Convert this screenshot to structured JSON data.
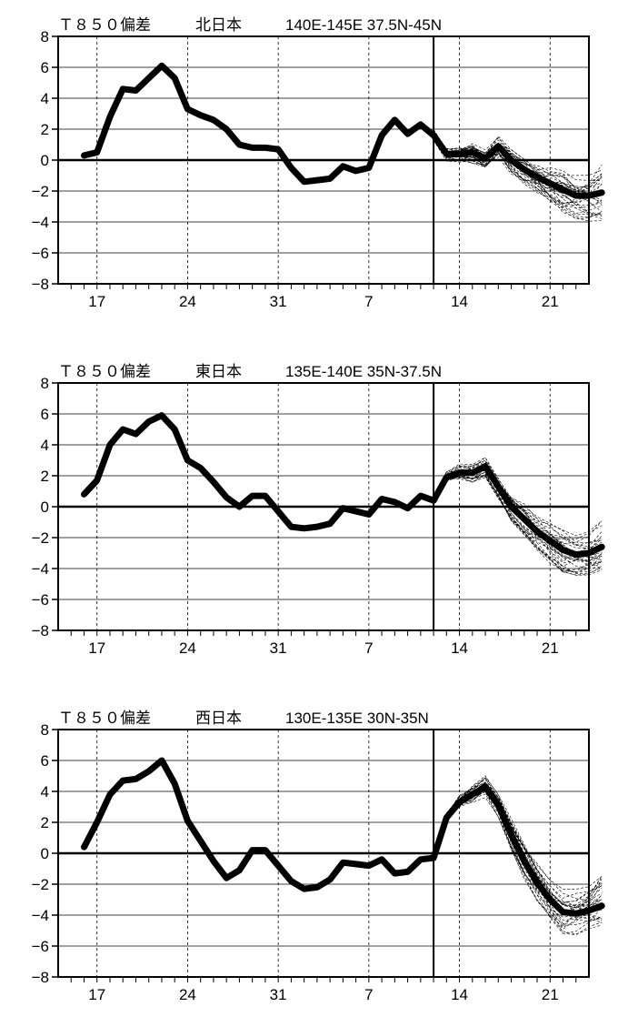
{
  "chart_data": [
    {
      "type": "line",
      "title": {
        "part1": "Ｔ８５０偏差",
        "part2": "北日本",
        "part3": "140E-145E  37.5N-45N"
      },
      "ylim": [
        -8,
        8
      ],
      "y_ticks": [
        "8",
        "6",
        "4",
        "2",
        "0",
        "−2",
        "−4",
        "−6",
        "−8"
      ],
      "x_tick_labels": [
        "17",
        "24",
        "31",
        "7",
        "14",
        "21"
      ],
      "grid": "dashed vertical lines at weekly dates, solid horizontal gridlines every 2",
      "series": [
        {
          "role": "observed",
          "style": "thick solid",
          "values": [
            0.3,
            0.5,
            2.8,
            4.6,
            4.5,
            5.3,
            6.1,
            5.3,
            3.3,
            2.9,
            2.6,
            2.0,
            1.0,
            0.8,
            0.8,
            0.7,
            -0.5,
            -1.4,
            -1.3,
            -1.2,
            -0.4,
            -0.7,
            -0.5,
            1.6,
            2.6,
            1.7,
            2.3,
            1.6
          ]
        },
        {
          "role": "ensemble-mean",
          "style": "thick solid",
          "values": [
            1.6,
            0.4,
            0.4,
            0.5,
            0.1,
            0.9,
            0.0,
            -0.6,
            -1.1,
            -1.5,
            -1.9,
            -2.3,
            -2.3,
            -2.1
          ]
        }
      ]
    },
    {
      "type": "line",
      "title": {
        "part1": "Ｔ８５０偏差",
        "part2": "東日本",
        "part3": "135E-140E  35N-37.5N"
      },
      "ylim": [
        -8,
        8
      ],
      "y_ticks": [
        "8",
        "6",
        "4",
        "2",
        "0",
        "−2",
        "−4",
        "−6",
        "−8"
      ],
      "x_tick_labels": [
        "17",
        "24",
        "31",
        "7",
        "14",
        "21"
      ],
      "series": [
        {
          "role": "observed",
          "style": "thick solid",
          "values": [
            0.8,
            1.7,
            4.0,
            5.0,
            4.7,
            5.5,
            5.9,
            5.0,
            3.0,
            2.5,
            1.6,
            0.6,
            0.0,
            0.7,
            0.7,
            -0.3,
            -1.3,
            -1.4,
            -1.3,
            -1.1,
            -0.1,
            -0.3,
            -0.5,
            0.5,
            0.3,
            -0.1,
            0.7,
            0.4
          ]
        },
        {
          "role": "ensemble-mean",
          "style": "thick solid",
          "values": [
            0.4,
            1.9,
            2.2,
            2.2,
            2.6,
            1.3,
            0.0,
            -0.8,
            -1.6,
            -2.2,
            -2.8,
            -3.1,
            -3.0,
            -2.6
          ]
        }
      ]
    },
    {
      "type": "line",
      "title": {
        "part1": "Ｔ８５０偏差",
        "part2": "西日本",
        "part3": "130E-135E  30N-35N"
      },
      "ylim": [
        -8,
        8
      ],
      "y_ticks": [
        "8",
        "6",
        "4",
        "2",
        "0",
        "−2",
        "−4",
        "−6",
        "−8"
      ],
      "x_tick_labels": [
        "17",
        "24",
        "31",
        "7",
        "14",
        "21"
      ],
      "series": [
        {
          "role": "observed",
          "style": "thick solid",
          "values": [
            0.4,
            2.0,
            3.8,
            4.7,
            4.8,
            5.3,
            6.0,
            4.5,
            2.1,
            0.8,
            -0.5,
            -1.6,
            -1.1,
            0.2,
            0.2,
            -0.8,
            -1.8,
            -2.3,
            -2.2,
            -1.7,
            -0.6,
            -0.7,
            -0.8,
            -0.4,
            -1.3,
            -1.2,
            -0.4,
            -0.3
          ]
        },
        {
          "role": "ensemble-mean",
          "style": "thick solid",
          "values": [
            -0.3,
            2.3,
            3.3,
            3.8,
            4.3,
            3.1,
            1.2,
            -0.5,
            -1.9,
            -3.0,
            -3.8,
            -3.9,
            -3.7,
            -3.4
          ]
        }
      ]
    }
  ]
}
